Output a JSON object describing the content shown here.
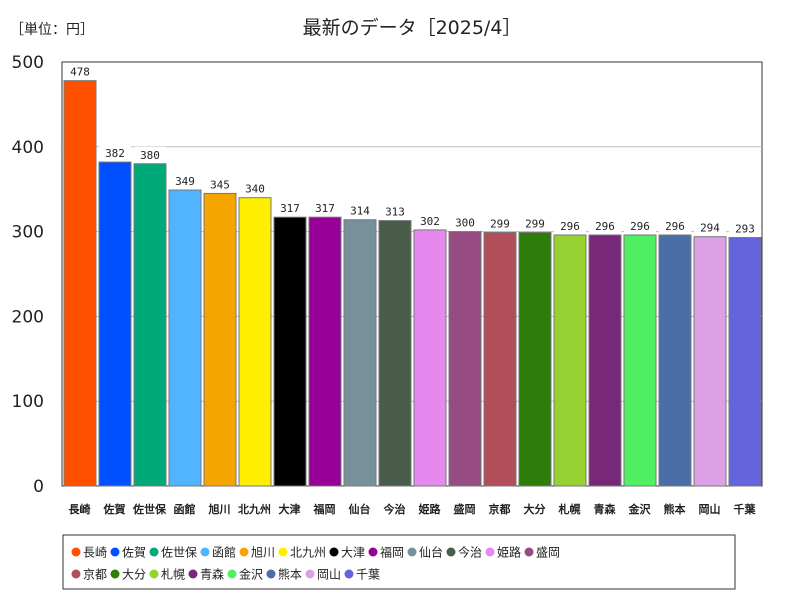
{
  "chart_data": {
    "type": "bar",
    "title": "最新のデータ［2025/4］",
    "unit_label": "［単位：円］",
    "xlabel": "",
    "ylabel": "",
    "ylim": [
      0,
      500
    ],
    "yticks": [
      0,
      100,
      200,
      300,
      400,
      500
    ],
    "grid": true,
    "legend_position": "bottom",
    "categories": [
      "長崎",
      "佐賀",
      "佐世保",
      "函館",
      "旭川",
      "北九州",
      "大津",
      "福岡",
      "仙台",
      "今治",
      "姫路",
      "盛岡",
      "京都",
      "大分",
      "札幌",
      "青森",
      "金沢",
      "熊本",
      "岡山",
      "千葉"
    ],
    "values": [
      478,
      382,
      380,
      349,
      345,
      340,
      317,
      317,
      314,
      313,
      302,
      300,
      299,
      299,
      296,
      296,
      296,
      296,
      294,
      293
    ],
    "colors": [
      "#ff5000",
      "#0050ff",
      "#00aa78",
      "#50b4ff",
      "#f5a500",
      "#ffee00",
      "#000000",
      "#960096",
      "#78909c",
      "#4a5d4a",
      "#e589ef",
      "#964b82",
      "#b04f5a",
      "#2e7d0a",
      "#96d232",
      "#782878",
      "#50f064",
      "#4a6ea6",
      "#dca0e6",
      "#6464dc"
    ]
  }
}
